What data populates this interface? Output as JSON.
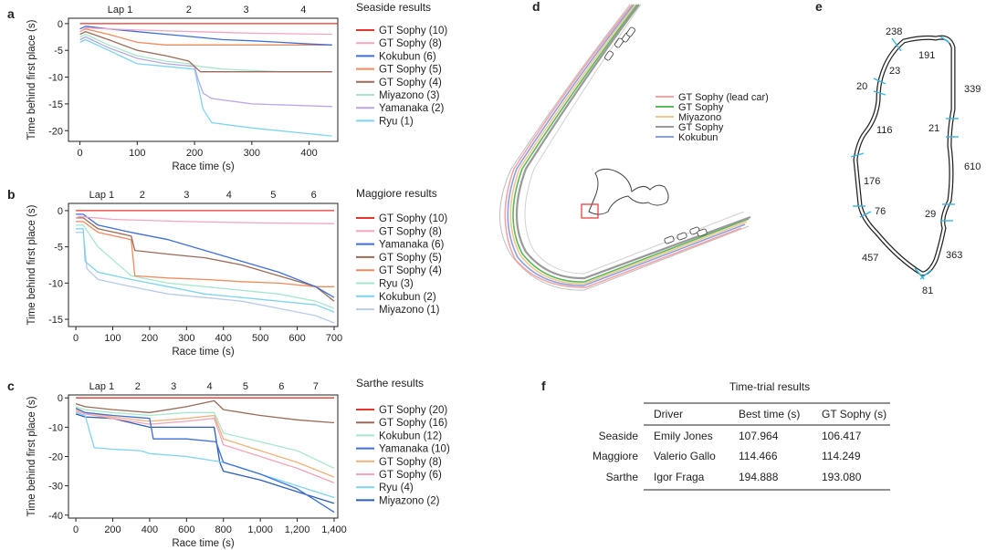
{
  "panel_labels": [
    "a",
    "b",
    "c",
    "d",
    "e",
    "f"
  ],
  "chart_data": [
    {
      "type": "line",
      "panel": "a",
      "title": "Seaside results",
      "xlabel": "Race time (s)",
      "ylabel": "Time behind first place (s)",
      "xlim": [
        -20,
        450
      ],
      "ylim": [
        -22,
        1
      ],
      "xticks": [
        0,
        100,
        200,
        300,
        400
      ],
      "xtick_labels": [
        "0",
        "100",
        "200",
        "300",
        "400"
      ],
      "yticks": [
        0,
        -5,
        -10,
        -15,
        -20
      ],
      "ytick_labels": [
        "0",
        "-5",
        "-10",
        "-15",
        "-20"
      ],
      "laps": [
        {
          "label": "Lap 1",
          "x": 70
        },
        {
          "label": "2",
          "x": 190
        },
        {
          "label": "3",
          "x": 290
        },
        {
          "label": "4",
          "x": 390
        }
      ],
      "series": [
        {
          "name": "GT Sophy (10)",
          "color": "#e8352e",
          "x": [
            0,
            450
          ],
          "y": [
            0,
            0
          ]
        },
        {
          "name": "GT Sophy (8)",
          "color": "#f2a6c4",
          "x": [
            0,
            10,
            50,
            100,
            200,
            300,
            440
          ],
          "y": [
            -1.5,
            -0.8,
            -1,
            -1.2,
            -1.5,
            -1.8,
            -2
          ]
        },
        {
          "name": "Kokubun (6)",
          "color": "#3d6fd6",
          "x": [
            0,
            10,
            50,
            100,
            150,
            200,
            250,
            300,
            350,
            400,
            440
          ],
          "y": [
            -1,
            -0.5,
            -1,
            -1.5,
            -2,
            -2.5,
            -3,
            -3.2,
            -3.5,
            -3.8,
            -4
          ]
        },
        {
          "name": "GT Sophy (5)",
          "color": "#f08a5d",
          "x": [
            0,
            10,
            50,
            100,
            150,
            200,
            300,
            440
          ],
          "y": [
            -1.5,
            -1,
            -2,
            -3.5,
            -4,
            -4,
            -4,
            -4
          ]
        },
        {
          "name": "GT Sophy (4)",
          "color": "#9a6a58",
          "x": [
            0,
            10,
            50,
            100,
            150,
            190,
            200,
            210,
            300,
            440
          ],
          "y": [
            -2,
            -1.5,
            -3,
            -5,
            -6,
            -7,
            -8,
            -9,
            -9,
            -9
          ]
        },
        {
          "name": "Miyazono (3)",
          "color": "#a8e6cc",
          "x": [
            0,
            10,
            50,
            100,
            150,
            190,
            200,
            210,
            250,
            350,
            440
          ],
          "y": [
            -2.5,
            -2,
            -4,
            -6,
            -7,
            -7.5,
            -7.8,
            -8,
            -8.5,
            -9,
            -9
          ]
        },
        {
          "name": "Yamanaka (2)",
          "color": "#b9a6e6",
          "x": [
            0,
            10,
            50,
            100,
            150,
            200,
            205,
            215,
            230,
            300,
            440
          ],
          "y": [
            -3,
            -2.5,
            -4.5,
            -6.5,
            -7.5,
            -8,
            -10,
            -13,
            -14,
            -15,
            -15.5
          ]
        },
        {
          "name": "Ryu (1)",
          "color": "#7fd3f0",
          "x": [
            0,
            10,
            50,
            100,
            150,
            200,
            205,
            215,
            230,
            300,
            440
          ],
          "y": [
            -3.5,
            -3,
            -5,
            -7.5,
            -8,
            -8.5,
            -11,
            -16,
            -18.5,
            -19.5,
            -21
          ]
        }
      ]
    },
    {
      "type": "line",
      "panel": "b",
      "title": "Maggiore results",
      "xlabel": "Race time (s)",
      "ylabel": "Time behind first place (s)",
      "xlim": [
        -20,
        710
      ],
      "ylim": [
        -16,
        1
      ],
      "xticks": [
        0,
        100,
        200,
        300,
        400,
        500,
        600,
        700
      ],
      "xtick_labels": [
        "0",
        "100",
        "200",
        "300",
        "400",
        "500",
        "600",
        "700"
      ],
      "yticks": [
        0,
        -5,
        -10,
        -15
      ],
      "ytick_labels": [
        "0",
        "-5",
        "-10",
        "-15"
      ],
      "laps": [
        {
          "label": "Lap 1",
          "x": 70
        },
        {
          "label": "2",
          "x": 180
        },
        {
          "label": "3",
          "x": 300
        },
        {
          "label": "4",
          "x": 415
        },
        {
          "label": "5",
          "x": 535
        },
        {
          "label": "6",
          "x": 645
        }
      ],
      "series": [
        {
          "name": "GT Sophy (10)",
          "color": "#e8352e",
          "x": [
            0,
            700
          ],
          "y": [
            0,
            0
          ]
        },
        {
          "name": "GT Sophy (8)",
          "color": "#f2a6c4",
          "x": [
            0,
            10,
            100,
            300,
            500,
            700
          ],
          "y": [
            -1,
            -0.8,
            -1.2,
            -1.5,
            -1.7,
            -1.8
          ]
        },
        {
          "name": "Yamanaka (6)",
          "color": "#3d6fd6",
          "x": [
            0,
            20,
            60,
            150,
            250,
            350,
            450,
            550,
            650,
            700
          ],
          "y": [
            -0.5,
            -0.5,
            -2,
            -3,
            -4,
            -5.5,
            -7,
            -8.5,
            -10.5,
            -12
          ]
        },
        {
          "name": "GT Sophy (5)",
          "color": "#9a6a58",
          "x": [
            0,
            20,
            60,
            150,
            160,
            250,
            350,
            450,
            550,
            650,
            700
          ],
          "y": [
            -1,
            -1,
            -2.5,
            -3.5,
            -5.5,
            -6,
            -6.5,
            -7.5,
            -9,
            -10.5,
            -12.5
          ]
        },
        {
          "name": "GT Sophy (4)",
          "color": "#f08a5d",
          "x": [
            0,
            20,
            60,
            150,
            160,
            250,
            350,
            450,
            550,
            650,
            700
          ],
          "y": [
            -1.5,
            -1.5,
            -3,
            -4,
            -9,
            -9.3,
            -9.5,
            -9.8,
            -10,
            -10.5,
            -10.5
          ]
        },
        {
          "name": "Ryu (3)",
          "color": "#a8e6cc",
          "x": [
            0,
            20,
            60,
            150,
            250,
            350,
            450,
            550,
            650,
            700
          ],
          "y": [
            -2,
            -2,
            -5,
            -9,
            -10,
            -10.5,
            -11,
            -11.5,
            -12.5,
            -13.5
          ]
        },
        {
          "name": "Kokubun (2)",
          "color": "#7fd3f0",
          "x": [
            0,
            20,
            25,
            60,
            150,
            250,
            350,
            450,
            550,
            650,
            700
          ],
          "y": [
            -2.5,
            -2.5,
            -7,
            -8.5,
            -9.5,
            -10.5,
            -11.5,
            -12,
            -12.5,
            -13,
            -14
          ]
        },
        {
          "name": "Miyazono (1)",
          "color": "#b9cbe8",
          "x": [
            0,
            20,
            30,
            60,
            150,
            250,
            350,
            450,
            550,
            650,
            700
          ],
          "y": [
            -3,
            -3,
            -8,
            -9.5,
            -10.5,
            -11.5,
            -12,
            -12.5,
            -13.5,
            -14.5,
            -15.5
          ]
        }
      ]
    },
    {
      "type": "line",
      "panel": "c",
      "title": "Sarthe results",
      "xlabel": "Race time (s)",
      "ylabel": "Time behind first place (s)",
      "xlim": [
        -40,
        1420
      ],
      "ylim": [
        -41,
        1
      ],
      "xticks": [
        0,
        200,
        400,
        600,
        800,
        1000,
        1200,
        1400
      ],
      "xtick_labels": [
        "0",
        "200",
        "400",
        "600",
        "800",
        "1,000",
        "1,200",
        "1,400"
      ],
      "yticks": [
        0,
        -10,
        -20,
        -30,
        -40
      ],
      "ytick_labels": [
        "0",
        "-10",
        "-20",
        "-30",
        "-40"
      ],
      "laps": [
        {
          "label": "Lap 1",
          "x": 140
        },
        {
          "label": "2",
          "x": 335
        },
        {
          "label": "3",
          "x": 530
        },
        {
          "label": "4",
          "x": 725
        },
        {
          "label": "5",
          "x": 920
        },
        {
          "label": "6",
          "x": 1115
        },
        {
          "label": "7",
          "x": 1300
        }
      ],
      "series": [
        {
          "name": "GT Sophy (20)",
          "color": "#e8352e",
          "x": [
            0,
            1400
          ],
          "y": [
            0,
            0
          ]
        },
        {
          "name": "GT Sophy (16)",
          "color": "#9a6a58",
          "x": [
            0,
            50,
            200,
            400,
            600,
            750,
            800,
            1000,
            1200,
            1400
          ],
          "y": [
            -2,
            -3,
            -4,
            -5,
            -3,
            -1,
            -4,
            -6,
            -7.5,
            -8.5
          ]
        },
        {
          "name": "Kokubun (12)",
          "color": "#a8e6cc",
          "x": [
            0,
            50,
            200,
            400,
            600,
            750,
            800,
            1000,
            1200,
            1400
          ],
          "y": [
            -3,
            -4,
            -5,
            -6,
            -5,
            -5,
            -12,
            -15,
            -18,
            -24
          ]
        },
        {
          "name": "Yamanaka (10)",
          "color": "#3d6fd6",
          "x": [
            0,
            50,
            200,
            400,
            420,
            600,
            760,
            800,
            1000,
            1200,
            1300,
            1400
          ],
          "y": [
            -3.5,
            -5,
            -6,
            -7,
            -14,
            -14,
            -15,
            -22,
            -26,
            -31,
            -35,
            -39
          ]
        },
        {
          "name": "GT Sophy (8)",
          "color": "#f0b27a",
          "x": [
            0,
            50,
            200,
            400,
            600,
            750,
            800,
            1000,
            1200,
            1400
          ],
          "y": [
            -4,
            -5,
            -6.5,
            -8,
            -7,
            -6,
            -14,
            -18,
            -22,
            -27
          ]
        },
        {
          "name": "GT Sophy (6)",
          "color": "#f5a3b8",
          "x": [
            0,
            50,
            200,
            400,
            600,
            750,
            800,
            1000,
            1200,
            1400
          ],
          "y": [
            -4.5,
            -5.5,
            -7,
            -9,
            -8,
            -7,
            -16,
            -20,
            -24,
            -29
          ]
        },
        {
          "name": "Ryu (4)",
          "color": "#7fd3f0",
          "x": [
            0,
            50,
            100,
            200,
            350,
            400,
            600,
            800,
            1000,
            1200,
            1400
          ],
          "y": [
            -5,
            -6,
            -17,
            -17.5,
            -18,
            -19,
            -20,
            -22,
            -26,
            -30,
            -34
          ]
        },
        {
          "name": "Miyazono (2)",
          "color": "#2c5fb5",
          "x": [
            0,
            50,
            200,
            400,
            600,
            750,
            780,
            800,
            1000,
            1200,
            1400
          ],
          "y": [
            -5.5,
            -6.5,
            -7,
            -10,
            -10,
            -10,
            -22,
            -25,
            -28,
            -32,
            -36
          ]
        }
      ]
    }
  ],
  "panel_d": {
    "legend": [
      {
        "name": "GT Sophy (lead car)",
        "color": "#f4a4a4"
      },
      {
        "name": "GT Sophy",
        "color": "#5cb85c"
      },
      {
        "name": "Miyazono",
        "color": "#f0c98a"
      },
      {
        "name": "GT Sophy",
        "color": "#999999"
      },
      {
        "name": "Kokubun",
        "color": "#8aa0e6"
      }
    ]
  },
  "panel_e": {
    "segment_labels": [
      "238",
      "191",
      "23",
      "20",
      "339",
      "116",
      "21",
      "610",
      "176",
      "76",
      "29",
      "457",
      "363",
      "81"
    ]
  },
  "panel_f": {
    "title": "Time-trial results",
    "columns": [
      "",
      "Driver",
      "Best time (s)",
      "GT Sophy (s)"
    ],
    "rows": [
      [
        "Seaside",
        "Emily Jones",
        "107.964",
        "106.417"
      ],
      [
        "Maggiore",
        "Valerio Gallo",
        "114.466",
        "114.249"
      ],
      [
        "Sarthe",
        "Igor Fraga",
        "194.888",
        "193.080"
      ]
    ]
  }
}
